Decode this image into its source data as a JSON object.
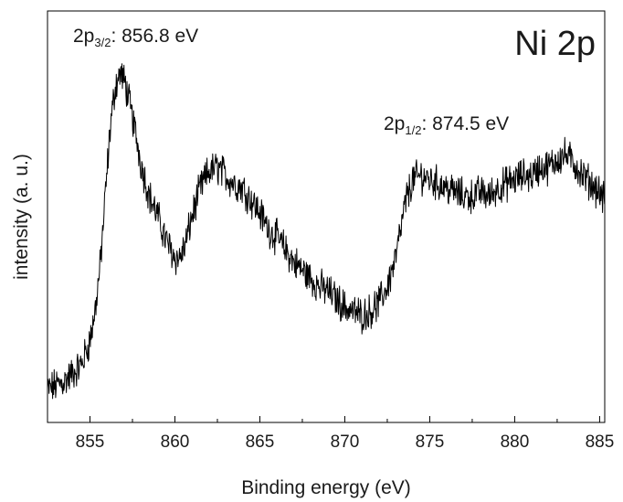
{
  "chart_data": {
    "type": "line",
    "title": "Ni 2p",
    "xlabel": "Binding energy (eV)",
    "ylabel": "intensity (a. u.)",
    "xlim": [
      852.5,
      885.3
    ],
    "ylim": [
      0,
      100
    ],
    "x_ticks": [
      855,
      860,
      865,
      870,
      875,
      880,
      885
    ],
    "x_tick_labels": [
      "855",
      "860",
      "865",
      "870",
      "875",
      "880",
      "885"
    ],
    "y_ticks": [],
    "grid": false,
    "legend": "none",
    "line_color": "#000000",
    "series": [
      {
        "x": [
          852.5,
          853,
          853.5,
          854,
          854.5,
          855,
          855.3,
          855.6,
          855.9,
          856.2,
          856.5,
          856.8,
          857.1,
          857.4,
          857.7,
          858,
          858.5,
          859,
          859.5,
          860,
          860.3,
          860.6,
          861,
          861.5,
          862,
          862.5,
          863,
          863.5,
          864,
          864.5,
          865,
          865.5,
          866,
          866.5,
          867,
          867.5,
          868,
          868.5,
          869,
          869.5,
          870,
          870.5,
          871,
          871.5,
          872,
          872.5,
          873,
          873.3,
          873.6,
          874,
          874.5,
          875,
          875.5,
          876,
          876.5,
          877,
          877.5,
          878,
          878.5,
          879,
          879.5,
          880,
          880.5,
          881,
          881.5,
          882,
          882.5,
          883,
          883.5,
          884,
          884.5,
          885,
          885.3
        ],
        "y": [
          8,
          9,
          10,
          12,
          14,
          20,
          27,
          38,
          55,
          72,
          82,
          85,
          82,
          76,
          70,
          63,
          55,
          50,
          44,
          40,
          40,
          43,
          50,
          57,
          61,
          62,
          60,
          58,
          57,
          54,
          51,
          47,
          45,
          42,
          39,
          37,
          35,
          33,
          32,
          30,
          28,
          27,
          26,
          27,
          29,
          33,
          40,
          47,
          54,
          59,
          60,
          59,
          58,
          57,
          56,
          55,
          55,
          56,
          55,
          57,
          58,
          59,
          60,
          60,
          62,
          62,
          64,
          65,
          63,
          60,
          58,
          56,
          54
        ]
      }
    ],
    "annotations": [
      {
        "text": "2p",
        "sub": "3/2",
        "suffix": ": 856.8 eV"
      },
      {
        "text": "2p",
        "sub": "1/2",
        "suffix": ": 874.5 eV"
      }
    ]
  }
}
